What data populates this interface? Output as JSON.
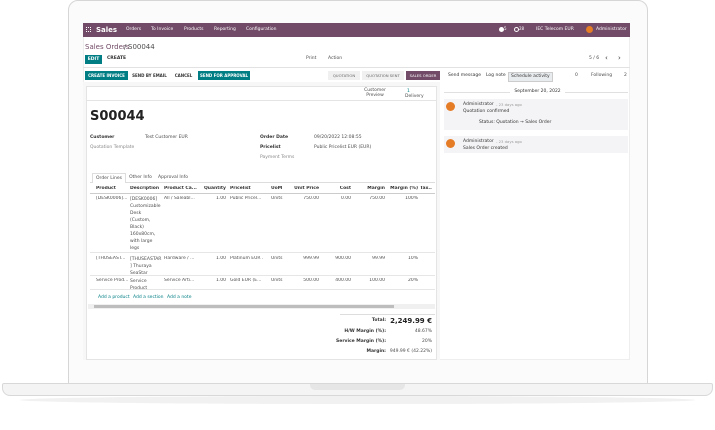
{
  "navbar": {
    "app": "Sales",
    "menu": [
      "Orders",
      "To Invoice",
      "Products",
      "Reporting",
      "Configuration"
    ],
    "messages": "5",
    "activities": "28",
    "company": "IEC Telecom EUR",
    "user": "Administrator"
  },
  "control_panel": {
    "breadcrumb": "Sales Orders",
    "separator": "/",
    "record": "S00044",
    "edit": "EDIT",
    "create": "CREATE",
    "print": "Print",
    "action": "Action",
    "pager": "5 / 6"
  },
  "status": {
    "buttons": [
      "CREATE INVOICE",
      "SEND BY EMAIL",
      "CANCEL",
      "SEND FOR APPROVAL"
    ],
    "stages": [
      "QUOTATION",
      "QUOTATION SENT",
      "SALES ORDER"
    ]
  },
  "chatter": {
    "buttons": [
      "Send message",
      "Log note",
      "Schedule activity"
    ],
    "attachments": "0",
    "following": "Following",
    "followers": "2",
    "date": "September 20, 2022",
    "messages": [
      {
        "author": "Administrator",
        "time": "- 23 days ago",
        "body": "Quotation confirmed",
        "tracking": "Status: Quotation → Sales Order"
      },
      {
        "author": "Administrator",
        "time": "- 23 days ago",
        "body": "Sales Order created"
      }
    ]
  },
  "form": {
    "smart_buttons": [
      {
        "label": "Customer Preview"
      },
      {
        "count": "1",
        "label": "Delivery"
      }
    ],
    "name": "S00044",
    "left_fields": [
      {
        "label": "Customer",
        "value": "Test Customer EUR"
      },
      {
        "label": "Quotation Template"
      }
    ],
    "right_fields": [
      {
        "label": "Order Date",
        "value": "09/20/2022 12:08:55"
      },
      {
        "label": "Pricelist",
        "value": "Public Pricelist EUR (EUR)"
      },
      {
        "label": "Payment Terms"
      }
    ],
    "tabs": [
      "Order Lines",
      "Other Info",
      "Approval Info"
    ],
    "order_lines": {
      "columns": [
        "Product",
        "Description",
        "Product Ca...",
        "Quantity",
        "Pricelist",
        "UoM",
        "Unit Price",
        "Cost",
        "Margin",
        "Margin (%)",
        "Tax..."
      ],
      "rows": [
        [
          "[DESK0006]...",
          "[DESK0006] Customizable Desk (Custom, Black) 160x80cm, with large legs",
          "All / Saleabl...",
          "1.00",
          "Public Pricel...",
          "Units",
          "750.00",
          "0.00",
          "750.00",
          "100%"
        ],
        [
          "[THUSEAST...",
          "[THUSEASTAR ] Thuraya SeaStar",
          "Hardware / ...",
          "1.00",
          "Platinum EUR ...",
          "Units",
          "999.99",
          "900.00",
          "99.99",
          "10%"
        ],
        [
          "Service Prod...",
          "Service Product",
          "Service Arti...",
          "1.00",
          "Gold EUR (E...",
          "Units",
          "500.00",
          "400.00",
          "100.00",
          "20%"
        ]
      ],
      "add": [
        "Add a product",
        "Add a section",
        "Add a note"
      ]
    },
    "totals": [
      {
        "label": "Total:",
        "value": "2,249.99 €"
      },
      {
        "label": "H/W Margin (%):",
        "value": "48.67%"
      },
      {
        "label": "Service Margin (%):",
        "value": "20%"
      },
      {
        "label": "Margin:",
        "value": "949.99 € (42.22%)"
      }
    ]
  }
}
